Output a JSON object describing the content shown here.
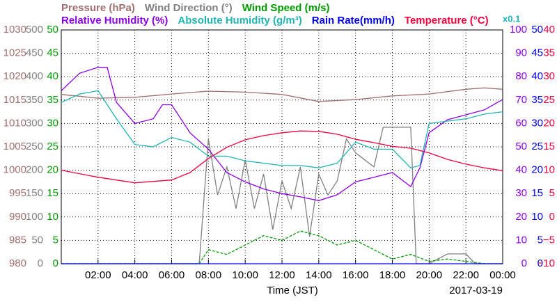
{
  "chart_data": {
    "type": "line",
    "x_label": "Time (JST)",
    "date_label": "2017-03-19",
    "annotation": "x0.1",
    "xlim": [
      0,
      24
    ],
    "xticks": [
      {
        "value": 2,
        "label": "02:00"
      },
      {
        "value": 4,
        "label": "04:00"
      },
      {
        "value": 6,
        "label": "06:00"
      },
      {
        "value": 8,
        "label": "08:00"
      },
      {
        "value": 10,
        "label": "10:00"
      },
      {
        "value": 12,
        "label": "12:00"
      },
      {
        "value": 14,
        "label": "14:00"
      },
      {
        "value": 16,
        "label": "16:00"
      },
      {
        "value": 18,
        "label": "18:00"
      },
      {
        "value": 20,
        "label": "20:00"
      },
      {
        "value": 22,
        "label": "22:00"
      },
      {
        "value": 24,
        "label": "00:00"
      }
    ],
    "grid": true,
    "axes": [
      {
        "id": "pressure",
        "side": "left",
        "color": "#a06e6e",
        "ylim": [
          980,
          1030
        ],
        "yticks": [
          980,
          985,
          990,
          995,
          1000,
          1005,
          1010,
          1015,
          1020,
          1025,
          1030
        ]
      },
      {
        "id": "wind_direction",
        "side": "left",
        "color": "#808080",
        "ylim": [
          0,
          500
        ],
        "yticks": [
          0,
          50,
          100,
          150,
          200,
          250,
          300,
          350,
          400,
          450,
          500
        ]
      },
      {
        "id": "wind_speed",
        "side": "left",
        "color": "#009a00",
        "ylim": [
          0,
          50
        ],
        "yticks": [
          0,
          5,
          10,
          15,
          20,
          25,
          30,
          35,
          40,
          45,
          50
        ]
      },
      {
        "id": "humidity",
        "side": "right",
        "color": "#8c00e6",
        "ylim": [
          0,
          100
        ],
        "yticks": [
          0,
          10,
          20,
          30,
          40,
          50,
          60,
          70,
          80,
          90,
          100
        ]
      },
      {
        "id": "rain",
        "side": "right",
        "color": "#0000e6",
        "ylim": [
          0,
          50
        ],
        "yticks": [
          0,
          5,
          10,
          15,
          20,
          25,
          30,
          35,
          40,
          45,
          50
        ]
      },
      {
        "id": "temperature",
        "side": "right",
        "color": "#f0003c",
        "ylim": [
          -10,
          40
        ],
        "yticks": [
          {
            "value": -10,
            "label": "−10"
          },
          {
            "value": -5,
            "label": "−5"
          },
          0,
          5,
          10,
          15,
          20,
          25,
          30,
          35,
          40
        ]
      }
    ],
    "series": [
      {
        "name": "Pressure (hPa)",
        "color": "#a06e6e",
        "axis": "pressure",
        "row": 1,
        "x": [
          0,
          2,
          4,
          6,
          8,
          10,
          12,
          14,
          16,
          18,
          20,
          22,
          23,
          24
        ],
        "values": [
          1016.2,
          1015.4,
          1015.6,
          1016.3,
          1016.9,
          1016.7,
          1016.2,
          1014.7,
          1015.1,
          1015.9,
          1016.3,
          1017.3,
          1017.6,
          1017.3
        ]
      },
      {
        "name": "Wind Direction (°)",
        "color": "#808080",
        "axis": "wind_direction",
        "row": 1,
        "x": [
          0,
          7.5,
          8,
          8.5,
          9,
          9.5,
          10,
          10.5,
          11,
          11.5,
          12,
          12.5,
          13,
          13.5,
          14,
          14.5,
          15,
          15.5,
          16,
          16.5,
          17,
          17.5,
          18.5,
          19,
          19.3,
          20,
          21,
          22,
          22.5,
          24
        ],
        "values": [
          0,
          0,
          267,
          147,
          207,
          118,
          222,
          118,
          192,
          73,
          177,
          118,
          207,
          58,
          192,
          147,
          177,
          267,
          237,
          222,
          207,
          292,
          292,
          292,
          0,
          0,
          21,
          21,
          0,
          0
        ]
      },
      {
        "name": "Wind Speed (m/s)",
        "color": "#009a00",
        "axis": "wind_speed",
        "row": 1,
        "dash": true,
        "x": [
          0,
          7.5,
          8,
          9,
          10,
          11,
          12,
          13,
          14,
          15,
          16,
          17,
          18,
          19,
          20,
          21,
          22,
          23,
          24
        ],
        "values": [
          0,
          0,
          3,
          2,
          4,
          6,
          5,
          7,
          6,
          4,
          5,
          3,
          1,
          2,
          0.5,
          1,
          0.5,
          0,
          0
        ]
      },
      {
        "name": "Relative Humidity (%)",
        "color": "#8c00e6",
        "axis": "humidity",
        "row": 2,
        "x": [
          0,
          1,
          2,
          2.5,
          3,
          4,
          5,
          5.5,
          6,
          7,
          8,
          9,
          10,
          11,
          12,
          13,
          14,
          15,
          16,
          17,
          18,
          19,
          19.5,
          20,
          21,
          22,
          23,
          24
        ],
        "values": [
          74,
          81.5,
          84,
          84,
          69,
          60,
          62,
          68,
          68,
          56,
          49,
          39,
          35,
          32,
          30,
          28.6,
          27,
          29.5,
          35,
          37,
          39,
          33,
          41,
          56,
          61.6,
          63.7,
          65.8,
          70.2
        ]
      },
      {
        "name": "Absolute Humidity (g/m³)",
        "color": "#20b4b4",
        "axis": "humidity",
        "row": 2,
        "x": [
          0,
          1,
          2,
          3,
          4,
          5,
          6,
          7,
          8,
          9,
          10,
          11,
          12,
          13,
          14,
          15,
          16,
          17,
          18,
          19,
          19.5,
          20,
          21,
          22,
          23,
          24
        ],
        "values": [
          69,
          72.6,
          74,
          62,
          51,
          50,
          54,
          52,
          46,
          46,
          44,
          43,
          42,
          42,
          41,
          43,
          52,
          49,
          49,
          41,
          42,
          60,
          61,
          62,
          64,
          65
        ]
      },
      {
        "name": "Rain Rate(mm/h)",
        "color": "#0000e6",
        "axis": "rain",
        "row": 2,
        "x": [
          0,
          24
        ],
        "values": [
          0,
          0
        ]
      },
      {
        "name": "Temperature (°C)",
        "color": "#f0003c",
        "axis": "temperature",
        "row": 2,
        "x": [
          0,
          2,
          4,
          6,
          7,
          8,
          9,
          10,
          11,
          12,
          13,
          14,
          15,
          16,
          17,
          18,
          19,
          20,
          21,
          22,
          23,
          24
        ],
        "values": [
          10,
          8.5,
          7.3,
          7.9,
          9.5,
          12.5,
          14.9,
          16.5,
          17.4,
          18,
          18.4,
          18.3,
          17.7,
          16.6,
          15.9,
          15.1,
          14.7,
          13.7,
          12.3,
          11.3,
          10.5,
          9.9
        ]
      }
    ]
  }
}
